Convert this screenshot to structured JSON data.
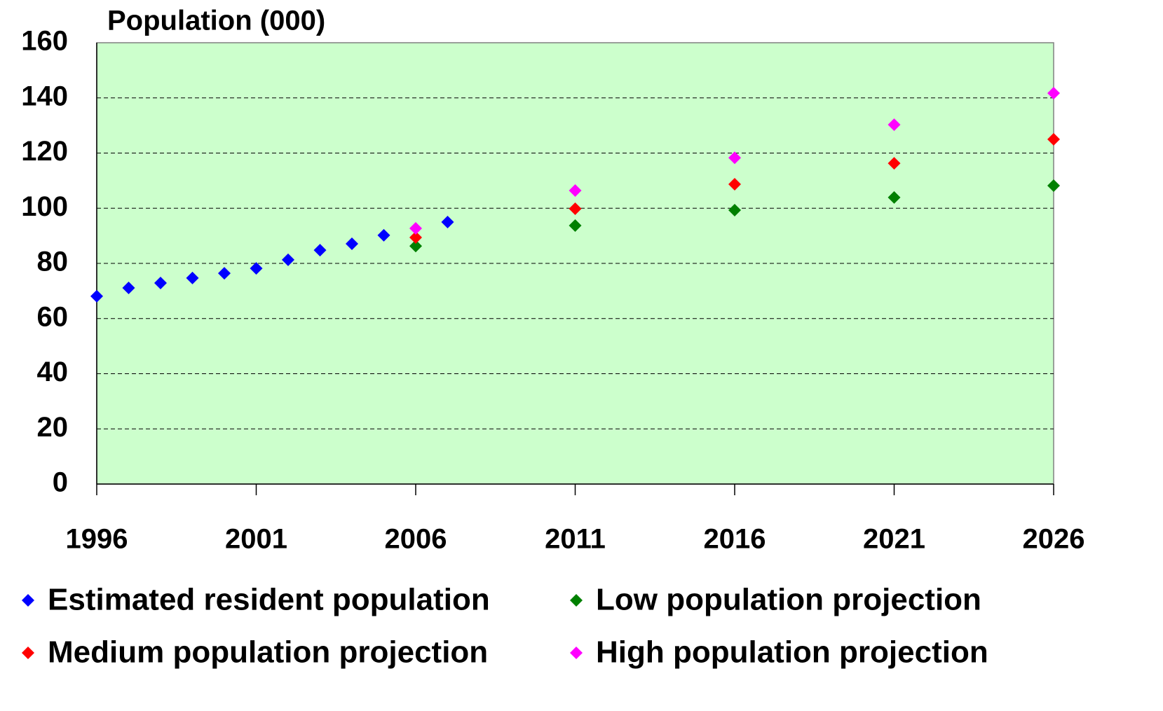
{
  "chart_data": {
    "type": "scatter",
    "title": "Population (000)",
    "xlim": [
      1996,
      2026
    ],
    "xticks": [
      1996,
      2001,
      2006,
      2011,
      2016,
      2021,
      2026
    ],
    "ylim": [
      0,
      160
    ],
    "yticks": [
      0,
      20,
      40,
      60,
      80,
      100,
      120,
      140,
      160
    ],
    "grid": true,
    "background": "#ccffcc",
    "series": [
      {
        "name": "Estimated resident population",
        "color": "#0000ff",
        "x": [
          1996,
          1997,
          1998,
          1999,
          2000,
          2001,
          2002,
          2003,
          2004,
          2005,
          2007
        ],
        "values": [
          68.1,
          71.1,
          72.9,
          74.7,
          76.4,
          78.2,
          81.3,
          84.8,
          87.1,
          90.2,
          95.0
        ]
      },
      {
        "name": "Low population projection",
        "color": "#008000",
        "x": [
          2006,
          2011,
          2016,
          2021,
          2026
        ],
        "values": [
          86.3,
          93.7,
          99.3,
          103.9,
          108.2
        ]
      },
      {
        "name": "Medium population projection",
        "color": "#ff0000",
        "x": [
          2006,
          2011,
          2016,
          2021,
          2026
        ],
        "values": [
          89.4,
          99.8,
          108.7,
          116.3,
          125.0
        ]
      },
      {
        "name": "High population projection",
        "color": "#ff00ff",
        "x": [
          2006,
          2011,
          2016,
          2021,
          2026
        ],
        "values": [
          92.7,
          106.4,
          118.3,
          130.3,
          141.7
        ]
      }
    ]
  }
}
